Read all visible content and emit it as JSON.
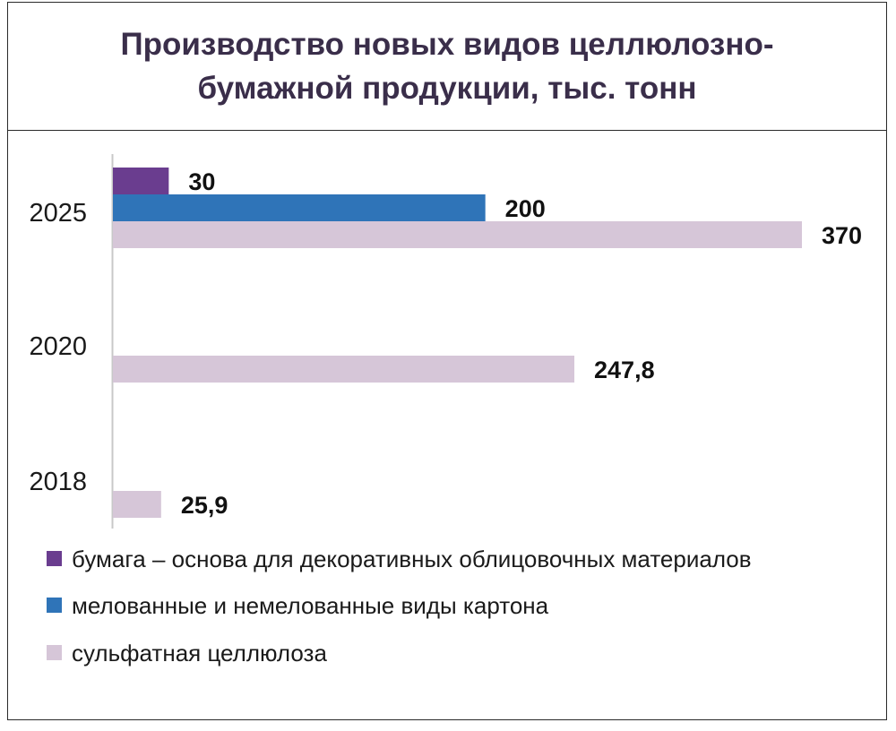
{
  "chart_data": {
    "type": "bar",
    "orientation": "horizontal",
    "title": "Производство новых видов целлюлозно-бумажной продукции, тыс. тонн",
    "categories": [
      "2025",
      "2020",
      "2018"
    ],
    "series": [
      {
        "name": "бумага – основа для декоративных облицовочных материалов",
        "color": "#6a3d8f",
        "values": [
          30,
          null,
          null
        ],
        "labels": [
          "30",
          "",
          ""
        ]
      },
      {
        "name": "мелованные и немелованные виды картона",
        "color": "#2f74b8",
        "values": [
          200,
          null,
          null
        ],
        "labels": [
          "200",
          "",
          ""
        ]
      },
      {
        "name": "сульфатная целлюлоза",
        "color": "#d6c6d8",
        "values": [
          370,
          247.8,
          25.9
        ],
        "labels": [
          "370",
          "247,8",
          "25,9"
        ]
      }
    ],
    "xlim": [
      0,
      370
    ],
    "grid": false,
    "legend_position": "bottom"
  }
}
